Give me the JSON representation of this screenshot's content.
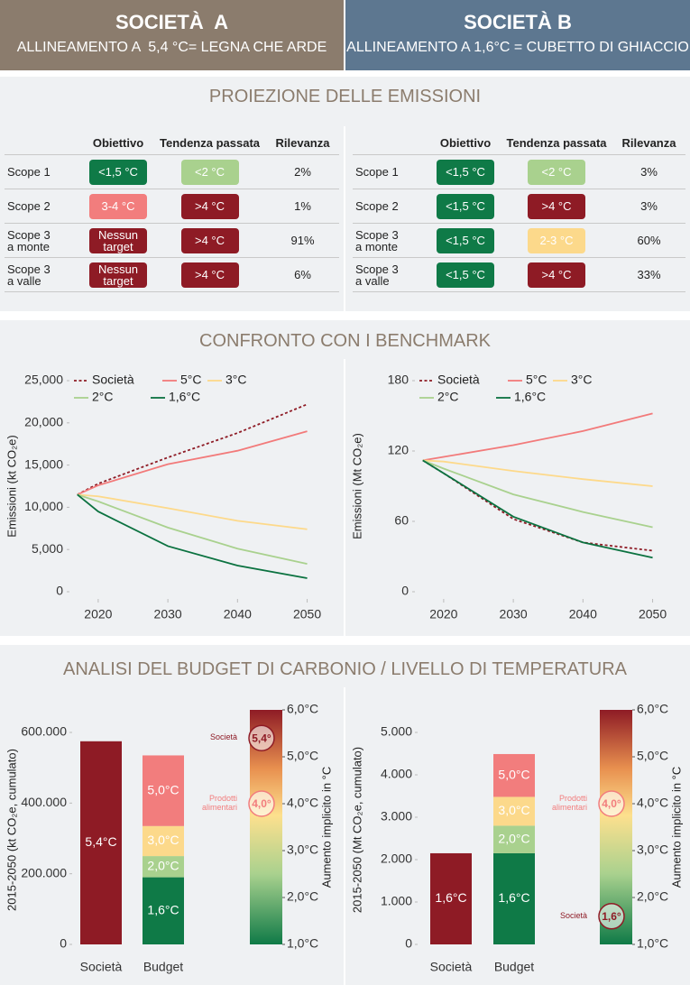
{
  "header": {
    "company_a": {
      "title": "SOCIETÀ  A",
      "subtitle": "ALLINEAMENTO A  5,4 °C= LEGNA CHE ARDE"
    },
    "company_b": {
      "title": "SOCIETÀ B",
      "subtitle": "ALLINEAMENTO A 1,6°C = CUBETTO DI GHIACCIO"
    }
  },
  "projection": {
    "title": "PROIEZIONE DELLE EMISSIONI",
    "tables": [
      {
        "columns": [
          "Obiettivo",
          "Tendenza passata",
          "Rilevanza"
        ],
        "rows": [
          {
            "scope": "Scope 1",
            "target": {
              "label": "<1,5 °C",
              "color": "#0f7a47"
            },
            "trend": {
              "label": "<2 °C",
              "color": "#a9d18e"
            },
            "relevance": "2%"
          },
          {
            "scope": "Scope 2",
            "target": {
              "label": "3-4 °C",
              "color": "#f27d7d"
            },
            "trend": {
              "label": ">4 °C",
              "color": "#8e1b25"
            },
            "relevance": "1%"
          },
          {
            "scope": "Scope 3 a monte",
            "target": {
              "label": "Nessun target",
              "color": "#8e1b25"
            },
            "trend": {
              "label": ">4 °C",
              "color": "#8e1b25"
            },
            "relevance": "91%"
          },
          {
            "scope": "Scope 3 a valle",
            "target": {
              "label": "Nessun target",
              "color": "#8e1b25"
            },
            "trend": {
              "label": ">4 °C",
              "color": "#8e1b25"
            },
            "relevance": "6%"
          }
        ]
      },
      {
        "columns": [
          "Obiettivo",
          "Tendenza passata",
          "Rilevanza"
        ],
        "rows": [
          {
            "scope": "Scope 1",
            "target": {
              "label": "<1,5 °C",
              "color": "#0f7a47"
            },
            "trend": {
              "label": "<2 °C",
              "color": "#a9d18e"
            },
            "relevance": "3%"
          },
          {
            "scope": "Scope 2",
            "target": {
              "label": "<1,5 °C",
              "color": "#0f7a47"
            },
            "trend": {
              "label": ">4 °C",
              "color": "#8e1b25"
            },
            "relevance": "3%"
          },
          {
            "scope": "Scope 3 a monte",
            "target": {
              "label": "<1,5 °C",
              "color": "#0f7a47"
            },
            "trend": {
              "label": "2-3 °C",
              "color": "#fcd98b"
            },
            "relevance": "60%"
          },
          {
            "scope": "Scope 3 a valle",
            "target": {
              "label": "<1,5 °C",
              "color": "#0f7a47"
            },
            "trend": {
              "label": ">4 °C",
              "color": "#8e1b25"
            },
            "relevance": "33%"
          }
        ]
      }
    ]
  },
  "benchmark_title": "CONFRONTO CON I BENCHMARK",
  "budget_title": "ANALISI DEL BUDGET DI CARBONIO / LIVELLO DI TEMPERATURA",
  "chart_data": [
    {
      "type": "line",
      "y_label": "Emissioni (kt CO₂e)",
      "x": [
        2017,
        2020,
        2030,
        2040,
        2050
      ],
      "xlim": [
        2016,
        2052
      ],
      "xticks": [
        2020,
        2030,
        2040,
        2050
      ],
      "ylim": [
        0,
        25000
      ],
      "yticks": [
        0,
        {
          "value": 5000,
          "label": "5,000"
        },
        {
          "value": 10000,
          "label": "10,000"
        },
        {
          "value": 15000,
          "label": "15,000"
        },
        {
          "value": 20000,
          "label": "20,000"
        },
        {
          "value": 25000,
          "label": "25,000"
        }
      ],
      "series": [
        {
          "name": "Società",
          "color": "#8e1b25",
          "line_style": "dotted",
          "values": [
            11500,
            12800,
            15900,
            18800,
            22200
          ]
        },
        {
          "name": "5°C",
          "color": "#f27a7a",
          "line_style": "solid",
          "values": [
            11500,
            12600,
            15100,
            16700,
            19000
          ]
        },
        {
          "name": "3°C",
          "color": "#fdd98a",
          "line_style": "solid",
          "values": [
            11500,
            11300,
            9900,
            8400,
            7400
          ]
        },
        {
          "name": "2°C",
          "color": "#a9d18e",
          "line_style": "solid",
          "values": [
            11500,
            10700,
            7600,
            5100,
            3300
          ]
        },
        {
          "name": "1,6°C",
          "color": "#0b7240",
          "line_style": "solid",
          "values": [
            11500,
            9500,
            5400,
            3100,
            1600
          ]
        }
      ]
    },
    {
      "type": "line",
      "y_label": "Emissioni (Mt CO₂e)",
      "x": [
        2017,
        2020,
        2030,
        2040,
        2050
      ],
      "xlim": [
        2016,
        2052
      ],
      "xticks": [
        2020,
        2030,
        2040,
        2050
      ],
      "ylim": [
        0,
        180
      ],
      "yticks": [
        0,
        60,
        120,
        180
      ],
      "series": [
        {
          "name": "Società",
          "color": "#8e1b25",
          "line_style": "dotted",
          "values": [
            112,
            101,
            62,
            42,
            35
          ]
        },
        {
          "name": "5°C",
          "color": "#f27a7a",
          "line_style": "solid",
          "values": [
            112,
            115,
            125,
            137,
            152
          ]
        },
        {
          "name": "3°C",
          "color": "#fdd98a",
          "line_style": "solid",
          "values": [
            112,
            111,
            103,
            96,
            90
          ]
        },
        {
          "name": "2°C",
          "color": "#a9d18e",
          "line_style": "solid",
          "values": [
            112,
            105,
            83,
            68,
            55
          ]
        },
        {
          "name": "1,6°C",
          "color": "#0b7240",
          "line_style": "solid",
          "values": [
            112,
            101,
            64,
            42,
            29
          ]
        }
      ]
    },
    {
      "type": "bar",
      "y_label": "2015-2050 (kt CO₂e, cumulato)",
      "categories": [
        "Società",
        "Budget"
      ],
      "ylim": [
        0,
        600000
      ],
      "yticks": [
        0,
        {
          "value": 200000,
          "label": "200.000"
        },
        {
          "value": 400000,
          "label": "400.000"
        },
        {
          "value": 600000,
          "label": "600.000"
        }
      ],
      "stacks": [
        [
          {
            "label": "5,4°C",
            "value": 575000,
            "color": "#8e1b25"
          }
        ],
        [
          {
            "label": "1,6°C",
            "value": 190000,
            "color": "#0f7a47"
          },
          {
            "label": "2,0°C",
            "value": 60000,
            "color": "#a9d18e"
          },
          {
            "label": "3,0°C",
            "value": 85000,
            "color": "#fcd98b"
          },
          {
            "label": "5,0°C",
            "value": 200000,
            "color": "#f27d7d"
          }
        ]
      ],
      "gauge": {
        "axis_label": "Aumento implicito in °C",
        "ylim": [
          1,
          6
        ],
        "yticks": [
          {
            "value": 1,
            "label": "1,0°C"
          },
          {
            "value": 2,
            "label": "2,0°C"
          },
          {
            "value": 3,
            "label": "3,0°C"
          },
          {
            "value": 4,
            "label": "4,0°C"
          },
          {
            "value": 5,
            "label": "5,0°C"
          },
          {
            "value": 6,
            "label": "6,0°C"
          }
        ],
        "markers": [
          {
            "name": "Società",
            "value": 5.4,
            "label": "5,4°",
            "color": "#8e1b25"
          },
          {
            "name": "Prodotti alimentari",
            "value": 4.0,
            "label": "4,0°",
            "color": "#f27d7d"
          }
        ]
      }
    },
    {
      "type": "bar",
      "y_label": "2015-2050 (Mt CO₂e, cumulato)",
      "categories": [
        "Società",
        "Budget"
      ],
      "ylim": [
        0,
        5000
      ],
      "yticks": [
        0,
        {
          "value": 1000,
          "label": "1.000"
        },
        {
          "value": 2000,
          "label": "2.000"
        },
        {
          "value": 3000,
          "label": "3.000"
        },
        {
          "value": 4000,
          "label": "4.000"
        },
        {
          "value": 5000,
          "label": "5.000"
        }
      ],
      "stacks": [
        [
          {
            "label": "1,6°C",
            "value": 2150,
            "color": "#8e1b25"
          }
        ],
        [
          {
            "label": "1,6°C",
            "value": 2150,
            "color": "#0f7a47"
          },
          {
            "label": "2,0°C",
            "value": 650,
            "color": "#a9d18e"
          },
          {
            "label": "3,0°C",
            "value": 680,
            "color": "#fcd98b"
          },
          {
            "label": "5,0°C",
            "value": 1010,
            "color": "#f27d7d"
          }
        ]
      ],
      "gauge": {
        "axis_label": "Aumento implicito in °C",
        "ylim": [
          1,
          6
        ],
        "yticks": [
          {
            "value": 1,
            "label": "1,0°C"
          },
          {
            "value": 2,
            "label": "2,0°C"
          },
          {
            "value": 3,
            "label": "3,0°C"
          },
          {
            "value": 4,
            "label": "4,0°C"
          },
          {
            "value": 5,
            "label": "5,0°C"
          },
          {
            "value": 6,
            "label": "6,0°C"
          }
        ],
        "markers": [
          {
            "name": "Prodotti alimentari",
            "value": 4.0,
            "label": "4,0°",
            "color": "#f27d7d"
          },
          {
            "name": "Società",
            "value": 1.6,
            "label": "1,6°",
            "color": "#8e1b25"
          }
        ]
      }
    }
  ]
}
